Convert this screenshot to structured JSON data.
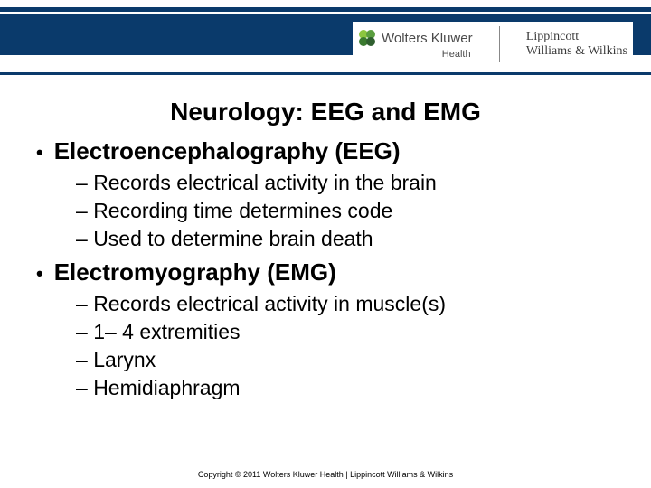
{
  "header": {
    "bar_color": "#0a3a6b",
    "brand_left_name": "Wolters Kluwer",
    "brand_left_sub": "Health",
    "brand_right_line1": "Lippincott",
    "brand_right_line2": "Williams & Wilkins",
    "logo_colors": {
      "tl": "#8cc63f",
      "tr": "#5a9e3f",
      "bl": "#3a7a2f",
      "br": "#2f5f2f"
    }
  },
  "title": "Neurology: EEG and EMG",
  "sections": [
    {
      "heading": "Electroencephalography (EEG)",
      "items": [
        "Records electrical activity in the brain",
        "Recording time determines code",
        "Used to determine brain death"
      ]
    },
    {
      "heading": "Electromyography (EMG)",
      "items": [
        "Records electrical activity in muscle(s)",
        "1– 4 extremities",
        "Larynx",
        "Hemidiaphragm"
      ]
    }
  ],
  "footer": "Copyright © 2011 Wolters Kluwer Health | Lippincott Williams & Wilkins"
}
